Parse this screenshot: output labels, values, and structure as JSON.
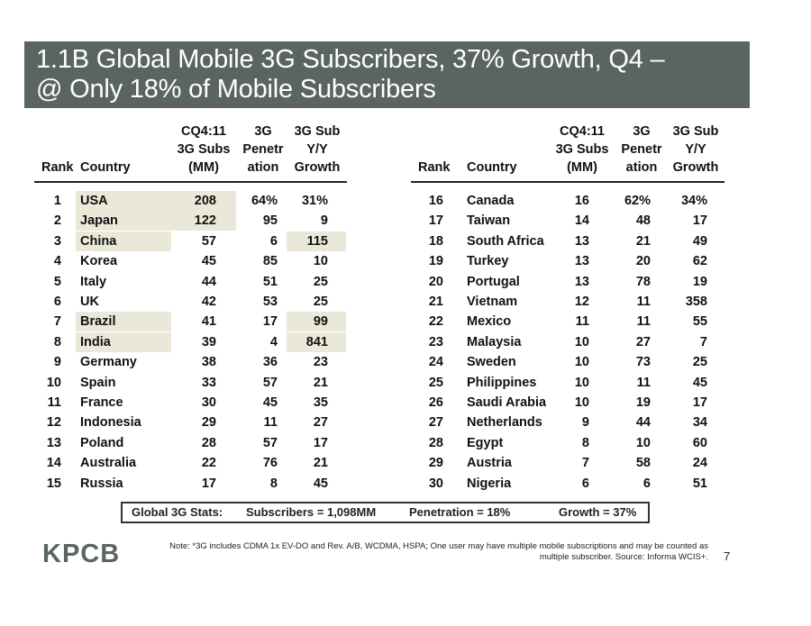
{
  "title": "1.1B Global Mobile 3G Subscribers, 37% Growth, Q4 – @ Only 18% of Mobile Subscribers",
  "title_line1": "1.1B Global Mobile 3G Subscribers, 37% Growth, Q4 –",
  "title_line2": "@ Only 18% of Mobile Subscribers",
  "headers": {
    "rank": "Rank",
    "country": "Country",
    "subs": [
      "CQ4:11",
      "3G Subs",
      "(MM)"
    ],
    "pen": [
      "3G",
      "Penetr",
      "ation"
    ],
    "growth": [
      "3G Sub",
      "Y/Y",
      "Growth"
    ]
  },
  "left_rows": [
    {
      "rank": "1",
      "country": "USA",
      "subs": "208",
      "pen": "64%",
      "growth": "31%"
    },
    {
      "rank": "2",
      "country": "Japan",
      "subs": "122",
      "pen": "95",
      "growth": "9"
    },
    {
      "rank": "3",
      "country": "China",
      "subs": "57",
      "pen": "6",
      "growth": "115"
    },
    {
      "rank": "4",
      "country": "Korea",
      "subs": "45",
      "pen": "85",
      "growth": "10"
    },
    {
      "rank": "5",
      "country": "Italy",
      "subs": "44",
      "pen": "51",
      "growth": "25"
    },
    {
      "rank": "6",
      "country": "UK",
      "subs": "42",
      "pen": "53",
      "growth": "25"
    },
    {
      "rank": "7",
      "country": "Brazil",
      "subs": "41",
      "pen": "17",
      "growth": "99"
    },
    {
      "rank": "8",
      "country": "India",
      "subs": "39",
      "pen": "4",
      "growth": "841"
    },
    {
      "rank": "9",
      "country": "Germany",
      "subs": "38",
      "pen": "36",
      "growth": "23"
    },
    {
      "rank": "10",
      "country": "Spain",
      "subs": "33",
      "pen": "57",
      "growth": "21"
    },
    {
      "rank": "11",
      "country": "France",
      "subs": "30",
      "pen": "45",
      "growth": "35"
    },
    {
      "rank": "12",
      "country": "Indonesia",
      "subs": "29",
      "pen": "11",
      "growth": "27"
    },
    {
      "rank": "13",
      "country": "Poland",
      "subs": "28",
      "pen": "57",
      "growth": "17"
    },
    {
      "rank": "14",
      "country": "Australia",
      "subs": "22",
      "pen": "76",
      "growth": "21"
    },
    {
      "rank": "15",
      "country": "Russia",
      "subs": "17",
      "pen": "8",
      "growth": "45"
    }
  ],
  "right_rows": [
    {
      "rank": "16",
      "country": "Canada",
      "subs": "16",
      "pen": "62%",
      "growth": "34%"
    },
    {
      "rank": "17",
      "country": "Taiwan",
      "subs": "14",
      "pen": "48",
      "growth": "17"
    },
    {
      "rank": "18",
      "country": "South Africa",
      "subs": "13",
      "pen": "21",
      "growth": "49"
    },
    {
      "rank": "19",
      "country": "Turkey",
      "subs": "13",
      "pen": "20",
      "growth": "62"
    },
    {
      "rank": "20",
      "country": "Portugal",
      "subs": "13",
      "pen": "78",
      "growth": "19"
    },
    {
      "rank": "21",
      "country": "Vietnam",
      "subs": "12",
      "pen": "11",
      "growth": "358"
    },
    {
      "rank": "22",
      "country": "Mexico",
      "subs": "11",
      "pen": "11",
      "growth": "55"
    },
    {
      "rank": "23",
      "country": "Malaysia",
      "subs": "10",
      "pen": "27",
      "growth": "7"
    },
    {
      "rank": "24",
      "country": "Sweden",
      "subs": "10",
      "pen": "73",
      "growth": "25"
    },
    {
      "rank": "25",
      "country": "Philippines",
      "subs": "10",
      "pen": "11",
      "growth": "45"
    },
    {
      "rank": "26",
      "country": "Saudi Arabia",
      "subs": "10",
      "pen": "19",
      "growth": "17"
    },
    {
      "rank": "27",
      "country": "Netherlands",
      "subs": "9",
      "pen": "44",
      "growth": "34"
    },
    {
      "rank": "28",
      "country": "Egypt",
      "subs": "8",
      "pen": "10",
      "growth": "60"
    },
    {
      "rank": "29",
      "country": "Austria",
      "subs": "7",
      "pen": "58",
      "growth": "24"
    },
    {
      "rank": "30",
      "country": "Nigeria",
      "subs": "6",
      "pen": "6",
      "growth": "51"
    }
  ],
  "stats": {
    "label": "Global 3G Stats:",
    "subscribers": "Subscribers = 1,098MM",
    "penetration": "Penetration = 18%",
    "growth": "Growth = 37%"
  },
  "logo": "KPCB",
  "note_line1": "Note: *3G includes CDMA 1x EV-DO and Rev. A/B, WCDMA, HSPA; One user may have multiple mobile subscriptions and may be counted as",
  "note_line2": "multiple subscriber.  Source: Informa WCIS+.",
  "page_number": "7",
  "highlight_color": "#eae8d8"
}
